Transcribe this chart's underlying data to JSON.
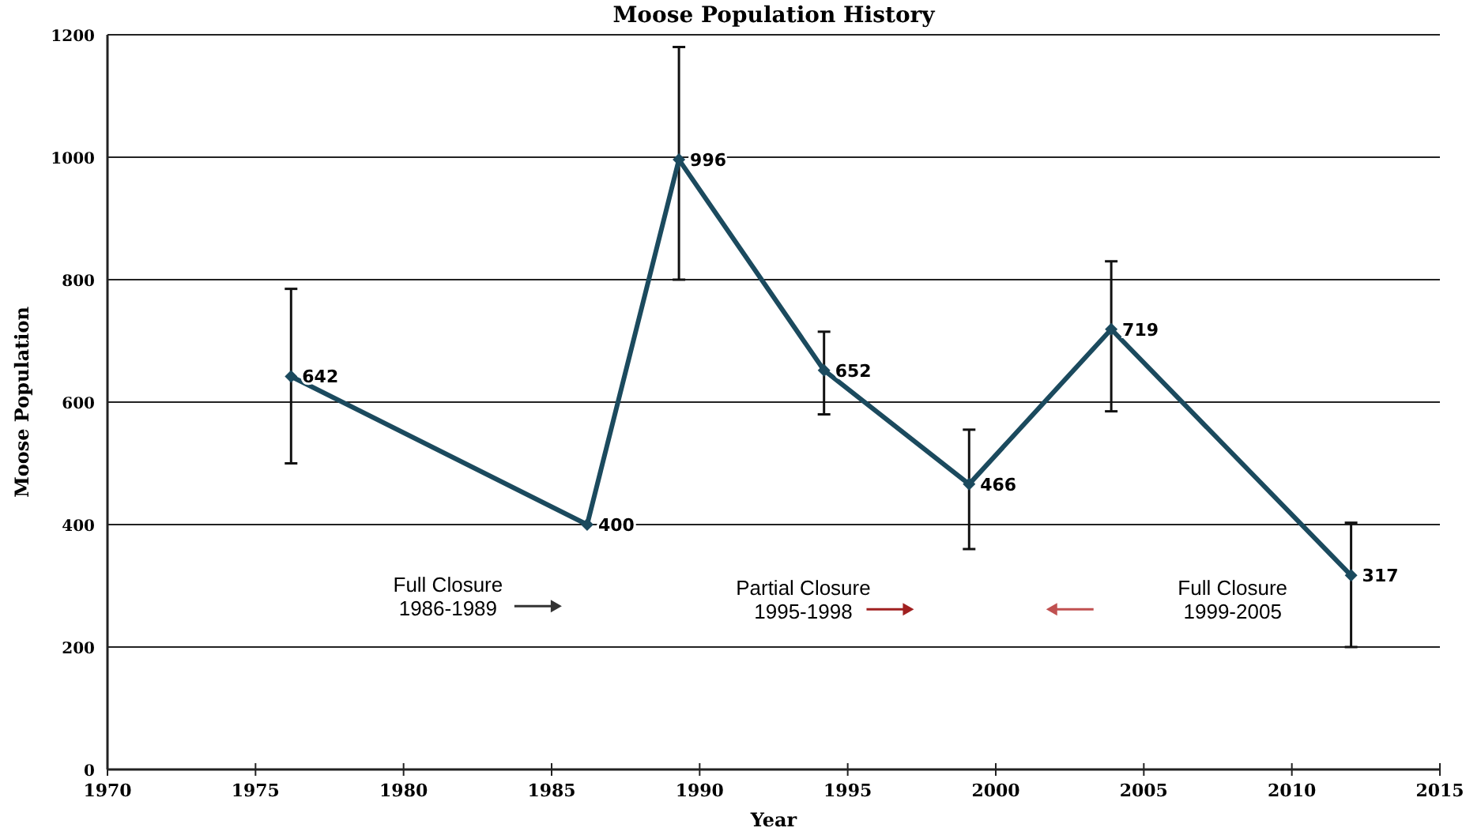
{
  "chart_data": {
    "type": "line",
    "title": "Moose Population History",
    "xlabel": "Year",
    "ylabel": "Moose Population",
    "x": [
      1976.2,
      1986.2,
      1989.3,
      1994.2,
      1999.1,
      2003.9,
      2012
    ],
    "series": [
      {
        "color": "#1b4a5e",
        "values": [
          642,
          400,
          996,
          652,
          466,
          719,
          317
        ],
        "errors": [
          [
            500,
            785
          ],
          null,
          [
            800,
            1180
          ],
          [
            580,
            715
          ],
          [
            360,
            555
          ],
          [
            585,
            830
          ],
          [
            200,
            403
          ]
        ]
      }
    ],
    "xlim": [
      1970,
      2015
    ],
    "xticks": [
      1970,
      1975,
      1980,
      1985,
      1990,
      1995,
      2000,
      2005,
      2010,
      2015
    ],
    "ylim": [
      0,
      1200
    ],
    "yticks": [
      0,
      200,
      400,
      600,
      800,
      1000,
      1200
    ],
    "grid": "y",
    "marker": "diamond",
    "line_style": "solid",
    "data_labels": true,
    "annotations": [
      "Full Closure\n1986-1989",
      "Partial Closure\n1995-1998",
      "Full Closure\n1999-2005"
    ]
  }
}
